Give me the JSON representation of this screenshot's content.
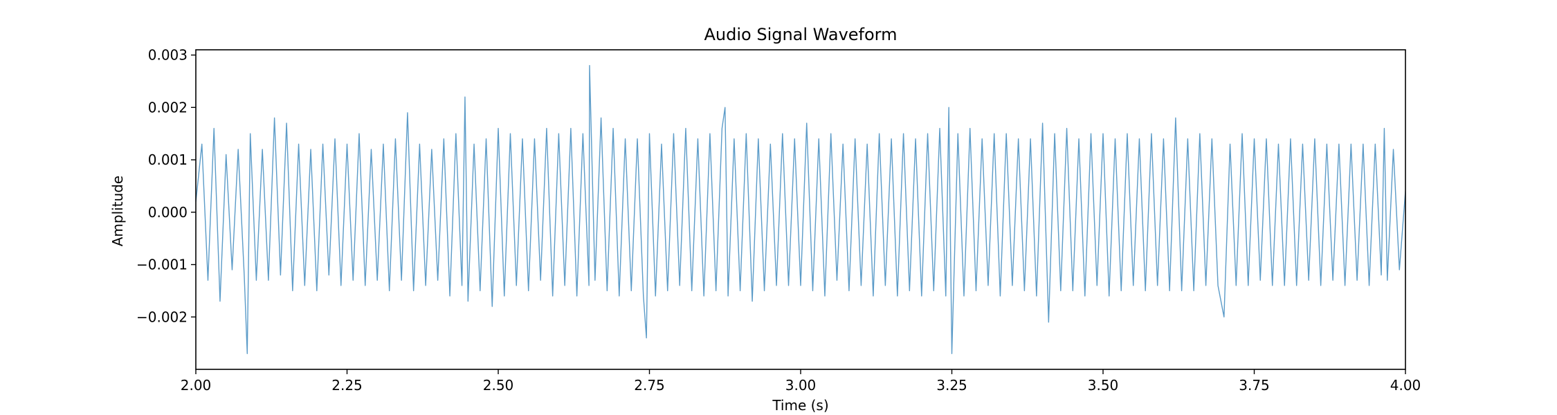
{
  "chart_data": {
    "type": "line",
    "title": "Audio Signal Waveform",
    "xlabel": "Time (s)",
    "ylabel": "Amplitude",
    "xlim": [
      2.0,
      4.0
    ],
    "ylim": [
      -0.003,
      0.0031
    ],
    "grid": false,
    "x_ticks": [
      2.0,
      2.25,
      2.5,
      2.75,
      3.0,
      3.25,
      3.5,
      3.75,
      4.0
    ],
    "x_tick_labels": [
      "2.00",
      "2.25",
      "2.50",
      "2.75",
      "3.00",
      "3.25",
      "3.50",
      "3.75",
      "4.00"
    ],
    "y_ticks": [
      0.003,
      0.002,
      0.001,
      0.0,
      -0.001,
      -0.002
    ],
    "y_tick_labels": [
      "0.003",
      "0.002",
      "0.001",
      "0.000",
      "−0.001",
      "−0.002"
    ],
    "series": [
      {
        "color": "#5b9bc8",
        "points": [
          [
            2.0,
            0.0002
          ],
          [
            2.01,
            0.0013
          ],
          [
            2.02,
            -0.0013
          ],
          [
            2.03,
            0.0016
          ],
          [
            2.04,
            -0.0017
          ],
          [
            2.05,
            0.0011
          ],
          [
            2.06,
            -0.0011
          ],
          [
            2.07,
            0.0012
          ],
          [
            2.08,
            -0.0012
          ],
          [
            2.085,
            -0.0027
          ],
          [
            2.09,
            0.0015
          ],
          [
            2.1,
            -0.0013
          ],
          [
            2.11,
            0.0012
          ],
          [
            2.12,
            -0.0013
          ],
          [
            2.13,
            0.0018
          ],
          [
            2.14,
            -0.0012
          ],
          [
            2.15,
            0.0017
          ],
          [
            2.16,
            -0.0015
          ],
          [
            2.17,
            0.0013
          ],
          [
            2.18,
            -0.0014
          ],
          [
            2.19,
            0.0012
          ],
          [
            2.2,
            -0.0015
          ],
          [
            2.21,
            0.0013
          ],
          [
            2.22,
            -0.0012
          ],
          [
            2.23,
            0.0014
          ],
          [
            2.24,
            -0.0014
          ],
          [
            2.25,
            0.0013
          ],
          [
            2.26,
            -0.0013
          ],
          [
            2.27,
            0.0015
          ],
          [
            2.28,
            -0.0014
          ],
          [
            2.29,
            0.0012
          ],
          [
            2.3,
            -0.0013
          ],
          [
            2.31,
            0.0013
          ],
          [
            2.32,
            -0.0015
          ],
          [
            2.33,
            0.0014
          ],
          [
            2.34,
            -0.0013
          ],
          [
            2.35,
            0.0019
          ],
          [
            2.36,
            -0.0015
          ],
          [
            2.37,
            0.0013
          ],
          [
            2.38,
            -0.0014
          ],
          [
            2.39,
            0.0012
          ],
          [
            2.4,
            -0.0013
          ],
          [
            2.41,
            0.0014
          ],
          [
            2.42,
            -0.0016
          ],
          [
            2.43,
            0.0015
          ],
          [
            2.44,
            -0.0014
          ],
          [
            2.445,
            0.0022
          ],
          [
            2.45,
            -0.0017
          ],
          [
            2.46,
            0.0013
          ],
          [
            2.47,
            -0.0015
          ],
          [
            2.48,
            0.0014
          ],
          [
            2.49,
            -0.0018
          ],
          [
            2.5,
            0.0016
          ],
          [
            2.51,
            -0.0016
          ],
          [
            2.52,
            0.0015
          ],
          [
            2.53,
            -0.0014
          ],
          [
            2.54,
            0.0014
          ],
          [
            2.55,
            -0.0015
          ],
          [
            2.56,
            0.0014
          ],
          [
            2.57,
            -0.0013
          ],
          [
            2.58,
            0.0016
          ],
          [
            2.59,
            -0.0016
          ],
          [
            2.6,
            0.0015
          ],
          [
            2.61,
            -0.0014
          ],
          [
            2.62,
            0.0016
          ],
          [
            2.63,
            -0.0016
          ],
          [
            2.64,
            0.0015
          ],
          [
            2.65,
            -0.0014
          ],
          [
            2.651,
            0.0028
          ],
          [
            2.66,
            -0.0013
          ],
          [
            2.67,
            0.0018
          ],
          [
            2.68,
            -0.0015
          ],
          [
            2.69,
            0.0016
          ],
          [
            2.7,
            -0.0016
          ],
          [
            2.71,
            0.0014
          ],
          [
            2.72,
            -0.0015
          ],
          [
            2.73,
            0.0014
          ],
          [
            2.74,
            -0.0016
          ],
          [
            2.745,
            -0.0024
          ],
          [
            2.75,
            0.0015
          ],
          [
            2.76,
            -0.0016
          ],
          [
            2.77,
            0.0013
          ],
          [
            2.78,
            -0.0015
          ],
          [
            2.79,
            0.0015
          ],
          [
            2.8,
            -0.0014
          ],
          [
            2.81,
            0.0016
          ],
          [
            2.82,
            -0.0015
          ],
          [
            2.83,
            0.0014
          ],
          [
            2.84,
            -0.0016
          ],
          [
            2.85,
            0.0015
          ],
          [
            2.86,
            -0.0015
          ],
          [
            2.87,
            0.0016
          ],
          [
            2.875,
            0.002
          ],
          [
            2.88,
            -0.0016
          ],
          [
            2.89,
            0.0014
          ],
          [
            2.9,
            -0.0015
          ],
          [
            2.91,
            0.0015
          ],
          [
            2.92,
            -0.0017
          ],
          [
            2.93,
            0.0014
          ],
          [
            2.94,
            -0.0015
          ],
          [
            2.95,
            0.0013
          ],
          [
            2.96,
            -0.0014
          ],
          [
            2.97,
            0.0015
          ],
          [
            2.98,
            -0.0014
          ],
          [
            2.99,
            0.0014
          ],
          [
            3.0,
            -0.0014
          ],
          [
            3.01,
            0.0017
          ],
          [
            3.02,
            -0.0015
          ],
          [
            3.03,
            0.0014
          ],
          [
            3.04,
            -0.0016
          ],
          [
            3.05,
            0.0015
          ],
          [
            3.06,
            -0.0013
          ],
          [
            3.07,
            0.0013
          ],
          [
            3.08,
            -0.0015
          ],
          [
            3.09,
            0.0014
          ],
          [
            3.1,
            -0.0014
          ],
          [
            3.11,
            0.0013
          ],
          [
            3.12,
            -0.0016
          ],
          [
            3.13,
            0.0015
          ],
          [
            3.14,
            -0.0014
          ],
          [
            3.15,
            0.0014
          ],
          [
            3.16,
            -0.0016
          ],
          [
            3.17,
            0.0015
          ],
          [
            3.18,
            -0.0015
          ],
          [
            3.19,
            0.0014
          ],
          [
            3.2,
            -0.0016
          ],
          [
            3.21,
            0.0015
          ],
          [
            3.22,
            -0.0015
          ],
          [
            3.23,
            0.0016
          ],
          [
            3.24,
            -0.0016
          ],
          [
            3.245,
            0.002
          ],
          [
            3.25,
            -0.0027
          ],
          [
            3.26,
            0.0015
          ],
          [
            3.27,
            -0.0016
          ],
          [
            3.28,
            0.0016
          ],
          [
            3.29,
            -0.0015
          ],
          [
            3.3,
            0.0014
          ],
          [
            3.31,
            -0.0014
          ],
          [
            3.32,
            0.0015
          ],
          [
            3.33,
            -0.0016
          ],
          [
            3.34,
            0.0015
          ],
          [
            3.35,
            -0.0014
          ],
          [
            3.36,
            0.0014
          ],
          [
            3.37,
            -0.0015
          ],
          [
            3.38,
            0.0014
          ],
          [
            3.39,
            -0.0016
          ],
          [
            3.4,
            0.0017
          ],
          [
            3.41,
            -0.0021
          ],
          [
            3.42,
            0.0015
          ],
          [
            3.43,
            -0.0015
          ],
          [
            3.44,
            0.0016
          ],
          [
            3.45,
            -0.0015
          ],
          [
            3.46,
            0.0014
          ],
          [
            3.47,
            -0.0016
          ],
          [
            3.48,
            0.0015
          ],
          [
            3.49,
            -0.0014
          ],
          [
            3.5,
            0.0015
          ],
          [
            3.51,
            -0.0016
          ],
          [
            3.52,
            0.0014
          ],
          [
            3.53,
            -0.0015
          ],
          [
            3.54,
            0.0015
          ],
          [
            3.55,
            -0.0014
          ],
          [
            3.56,
            0.0014
          ],
          [
            3.57,
            -0.0015
          ],
          [
            3.58,
            0.0015
          ],
          [
            3.59,
            -0.0014
          ],
          [
            3.6,
            0.0014
          ],
          [
            3.61,
            -0.0015
          ],
          [
            3.62,
            0.0018
          ],
          [
            3.63,
            -0.0015
          ],
          [
            3.64,
            0.0014
          ],
          [
            3.65,
            -0.0015
          ],
          [
            3.66,
            0.0015
          ],
          [
            3.67,
            -0.0014
          ],
          [
            3.68,
            0.0014
          ],
          [
            3.69,
            -0.0014
          ],
          [
            3.7,
            -0.002
          ],
          [
            3.71,
            0.0013
          ],
          [
            3.72,
            -0.0014
          ],
          [
            3.73,
            0.0015
          ],
          [
            3.74,
            -0.0014
          ],
          [
            3.75,
            0.0014
          ],
          [
            3.76,
            -0.0013
          ],
          [
            3.77,
            0.0014
          ],
          [
            3.78,
            -0.0014
          ],
          [
            3.79,
            0.0013
          ],
          [
            3.8,
            -0.0014
          ],
          [
            3.81,
            0.0014
          ],
          [
            3.82,
            -0.0014
          ],
          [
            3.83,
            0.0013
          ],
          [
            3.84,
            -0.0013
          ],
          [
            3.85,
            0.0014
          ],
          [
            3.86,
            -0.0014
          ],
          [
            3.87,
            0.0013
          ],
          [
            3.88,
            -0.0013
          ],
          [
            3.89,
            0.0013
          ],
          [
            3.9,
            -0.0014
          ],
          [
            3.91,
            0.0013
          ],
          [
            3.92,
            -0.0013
          ],
          [
            3.93,
            0.0013
          ],
          [
            3.94,
            -0.0014
          ],
          [
            3.95,
            0.0013
          ],
          [
            3.96,
            -0.0012
          ],
          [
            3.965,
            0.0016
          ],
          [
            3.97,
            -0.0013
          ],
          [
            3.98,
            0.0012
          ],
          [
            3.99,
            -0.0011
          ],
          [
            4.0,
            0.0004
          ]
        ]
      }
    ]
  }
}
